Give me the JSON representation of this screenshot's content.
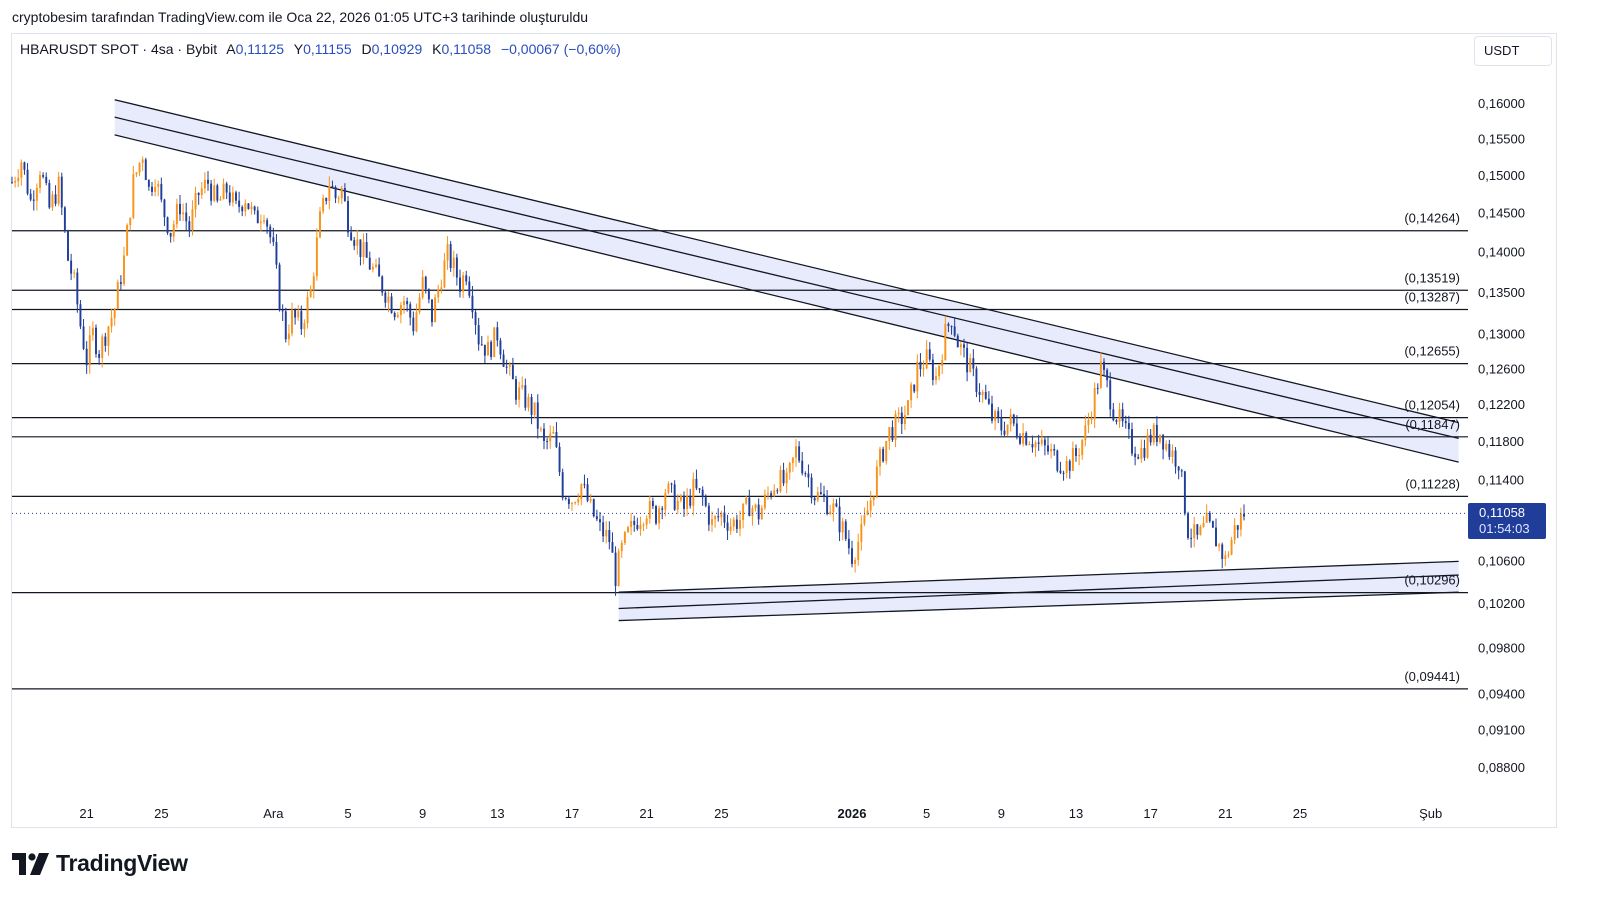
{
  "header": {
    "attribution": "cryptobesim tarafından TradingView.com ile Oca 22, 2026 01:05 UTC+3 tarihinde oluşturuldu"
  },
  "legend": {
    "symbol": "HBARUSDT SPOT · 4sa · Bybit",
    "open_label": "A",
    "open": "0,11125",
    "high_label": "Y",
    "high": "0,11155",
    "low_label": "D",
    "low": "0,10929",
    "close_label": "K",
    "close": "0,11058",
    "change": "−0,00067 (−0,60%)"
  },
  "currency": "USDT",
  "price_tag": {
    "price": "0,11058",
    "countdown": "01:54:03"
  },
  "brand": {
    "name": "TradingView"
  },
  "colors": {
    "up": "#f7931a",
    "down": "#1f3d99",
    "channel_fill": "#e3e8fb",
    "line": "#131722",
    "price_tag": "#1f3d99",
    "current_price_line": "#1f3d99"
  },
  "chart_data": {
    "type": "candlestick",
    "symbol": "HBARUSDT",
    "timeframe": "4sa",
    "y_axis": {
      "scale": "log",
      "range": [
        0.0865,
        0.1625
      ],
      "ticks": [
        0.16,
        0.155,
        0.15,
        0.145,
        0.14,
        0.135,
        0.13,
        0.126,
        0.122,
        0.118,
        0.114,
        0.106,
        0.102,
        0.098,
        0.094,
        0.091,
        0.088
      ],
      "tick_labels": [
        "0,16000",
        "0,15500",
        "0,15000",
        "0,14500",
        "0,14000",
        "0,13500",
        "0,13000",
        "0,12600",
        "0,12200",
        "0,11800",
        "0,11400",
        "0,10600",
        "0,10200",
        "0,09800",
        "0,09400",
        "0,09100",
        "0,08800"
      ]
    },
    "x_axis": {
      "start": "2025-11-17",
      "end": "2026-02-03",
      "ticks": [
        {
          "date": "2025-11-21",
          "label": "21"
        },
        {
          "date": "2025-11-25",
          "label": "25"
        },
        {
          "date": "2025-12-01",
          "label": "Ara"
        },
        {
          "date": "2025-12-05",
          "label": "5"
        },
        {
          "date": "2025-12-09",
          "label": "9"
        },
        {
          "date": "2025-12-13",
          "label": "13"
        },
        {
          "date": "2025-12-17",
          "label": "17"
        },
        {
          "date": "2025-12-21",
          "label": "21"
        },
        {
          "date": "2025-12-25",
          "label": "25"
        },
        {
          "date": "2026-01-01",
          "label": "2026",
          "bold": true
        },
        {
          "date": "2026-01-05",
          "label": "5"
        },
        {
          "date": "2026-01-09",
          "label": "9"
        },
        {
          "date": "2026-01-13",
          "label": "13"
        },
        {
          "date": "2026-01-17",
          "label": "17"
        },
        {
          "date": "2026-01-21",
          "label": "21"
        },
        {
          "date": "2026-01-25",
          "label": "25"
        },
        {
          "date": "2026-02-01",
          "label": "Şub"
        }
      ]
    },
    "price_path": [
      [
        "2025-11-17T00:00",
        0.149
      ],
      [
        "2025-11-17T12:00",
        0.152
      ],
      [
        "2025-11-18T00:00",
        0.1465
      ],
      [
        "2025-11-18T12:00",
        0.151
      ],
      [
        "2025-11-19T00:00",
        0.1455
      ],
      [
        "2025-11-19T12:00",
        0.1485
      ],
      [
        "2025-11-20T00:00",
        0.139
      ],
      [
        "2025-11-20T08:00",
        0.136
      ],
      [
        "2025-11-20T16:00",
        0.131
      ],
      [
        "2025-11-21T00:00",
        0.127
      ],
      [
        "2025-11-21T08:00",
        0.13
      ],
      [
        "2025-11-21T16:00",
        0.128
      ],
      [
        "2025-11-22T00:00",
        0.13
      ],
      [
        "2025-11-22T12:00",
        0.133
      ],
      [
        "2025-11-23T00:00",
        0.139
      ],
      [
        "2025-11-23T12:00",
        0.149
      ],
      [
        "2025-11-24T00:00",
        0.153
      ],
      [
        "2025-11-24T08:00",
        0.148
      ],
      [
        "2025-11-24T16:00",
        0.15
      ],
      [
        "2025-11-25T00:00",
        0.146
      ],
      [
        "2025-11-25T12:00",
        0.1425
      ],
      [
        "2025-11-26T00:00",
        0.146
      ],
      [
        "2025-11-26T12:00",
        0.143
      ],
      [
        "2025-11-27T00:00",
        0.1475
      ],
      [
        "2025-11-27T12:00",
        0.149
      ],
      [
        "2025-11-28T00:00",
        0.146
      ],
      [
        "2025-11-28T12:00",
        0.148
      ],
      [
        "2025-11-29T00:00",
        0.1455
      ],
      [
        "2025-11-29T12:00",
        0.147
      ],
      [
        "2025-11-30T00:00",
        0.144
      ],
      [
        "2025-11-30T12:00",
        0.1455
      ],
      [
        "2025-12-01T00:00",
        0.14
      ],
      [
        "2025-12-01T08:00",
        0.134
      ],
      [
        "2025-12-01T16:00",
        0.13
      ],
      [
        "2025-12-02T00:00",
        0.132
      ],
      [
        "2025-12-02T12:00",
        0.131
      ],
      [
        "2025-12-03T00:00",
        0.135
      ],
      [
        "2025-12-03T12:00",
        0.144
      ],
      [
        "2025-12-04T00:00",
        0.149
      ],
      [
        "2025-12-04T08:00",
        0.147
      ],
      [
        "2025-12-04T16:00",
        0.148
      ],
      [
        "2025-12-05T00:00",
        0.144
      ],
      [
        "2025-12-05T12:00",
        0.141
      ],
      [
        "2025-12-06T00:00",
        0.139
      ],
      [
        "2025-12-06T12:00",
        0.137
      ],
      [
        "2025-12-07T00:00",
        0.135
      ],
      [
        "2025-12-07T12:00",
        0.133
      ],
      [
        "2025-12-08T00:00",
        0.134
      ],
      [
        "2025-12-08T12:00",
        0.131
      ],
      [
        "2025-12-09T00:00",
        0.136
      ],
      [
        "2025-12-09T12:00",
        0.132
      ],
      [
        "2025-12-10T00:00",
        0.137
      ],
      [
        "2025-12-10T08:00",
        0.1395
      ],
      [
        "2025-12-10T16:00",
        0.138
      ],
      [
        "2025-12-11T00:00",
        0.136
      ],
      [
        "2025-12-11T08:00",
        0.1375
      ],
      [
        "2025-12-11T16:00",
        0.134
      ],
      [
        "2025-12-12T00:00",
        0.1295
      ],
      [
        "2025-12-12T12:00",
        0.128
      ],
      [
        "2025-12-13T00:00",
        0.13
      ],
      [
        "2025-12-13T12:00",
        0.126
      ],
      [
        "2025-12-14T00:00",
        0.1235
      ],
      [
        "2025-12-14T12:00",
        0.1225
      ],
      [
        "2025-12-15T00:00",
        0.121
      ],
      [
        "2025-12-15T12:00",
        0.1175
      ],
      [
        "2025-12-16T00:00",
        0.1185
      ],
      [
        "2025-12-16T12:00",
        0.113
      ],
      [
        "2025-12-17T00:00",
        0.112
      ],
      [
        "2025-12-17T12:00",
        0.1135
      ],
      [
        "2025-12-18T00:00",
        0.111
      ],
      [
        "2025-12-18T12:00",
        0.109
      ],
      [
        "2025-12-19T00:00",
        0.108
      ],
      [
        "2025-12-19T08:00",
        0.1045
      ],
      [
        "2025-12-19T16:00",
        0.107
      ],
      [
        "2025-12-20T00:00",
        0.1085
      ],
      [
        "2025-12-20T12:00",
        0.11
      ],
      [
        "2025-12-21T00:00",
        0.111
      ],
      [
        "2025-12-21T12:00",
        0.1105
      ],
      [
        "2025-12-22T00:00",
        0.113
      ],
      [
        "2025-12-22T12:00",
        0.112
      ],
      [
        "2025-12-23T00:00",
        0.111
      ],
      [
        "2025-12-23T12:00",
        0.113
      ],
      [
        "2025-12-24T00:00",
        0.112
      ],
      [
        "2025-12-24T12:00",
        0.1095
      ],
      [
        "2025-12-25T00:00",
        0.1105
      ],
      [
        "2025-12-25T12:00",
        0.1095
      ],
      [
        "2025-12-26T00:00",
        0.11
      ],
      [
        "2025-12-26T12:00",
        0.1115
      ],
      [
        "2025-12-27T00:00",
        0.1105
      ],
      [
        "2025-12-27T12:00",
        0.1125
      ],
      [
        "2025-12-28T00:00",
        0.114
      ],
      [
        "2025-12-28T12:00",
        0.1135
      ],
      [
        "2025-12-29T00:00",
        0.117
      ],
      [
        "2025-12-29T12:00",
        0.115
      ],
      [
        "2025-12-30T00:00",
        0.1125
      ],
      [
        "2025-12-30T12:00",
        0.112
      ],
      [
        "2025-12-31T00:00",
        0.111
      ],
      [
        "2025-12-31T12:00",
        0.109
      ],
      [
        "2026-01-01T00:00",
        0.1065
      ],
      [
        "2026-01-01T12:00",
        0.1085
      ],
      [
        "2026-01-02T00:00",
        0.112
      ],
      [
        "2026-01-02T12:00",
        0.116
      ],
      [
        "2026-01-03T00:00",
        0.119
      ],
      [
        "2026-01-03T12:00",
        0.12
      ],
      [
        "2026-01-04T00:00",
        0.1215
      ],
      [
        "2026-01-04T12:00",
        0.126
      ],
      [
        "2026-01-05T00:00",
        0.127
      ],
      [
        "2026-01-05T12:00",
        0.125
      ],
      [
        "2026-01-06T00:00",
        0.13
      ],
      [
        "2026-01-06T08:00",
        0.132
      ],
      [
        "2026-01-06T16:00",
        0.129
      ],
      [
        "2026-01-07T00:00",
        0.1275
      ],
      [
        "2026-01-07T12:00",
        0.125
      ],
      [
        "2026-01-08T00:00",
        0.123
      ],
      [
        "2026-01-08T12:00",
        0.1205
      ],
      [
        "2026-01-09T00:00",
        0.1195
      ],
      [
        "2026-01-09T12:00",
        0.12
      ],
      [
        "2026-01-10T00:00",
        0.119
      ],
      [
        "2026-01-10T12:00",
        0.1185
      ],
      [
        "2026-01-11T00:00",
        0.1175
      ],
      [
        "2026-01-11T12:00",
        0.117
      ],
      [
        "2026-01-12T00:00",
        0.116
      ],
      [
        "2026-01-12T12:00",
        0.1155
      ],
      [
        "2026-01-13T00:00",
        0.1165
      ],
      [
        "2026-01-13T12:00",
        0.119
      ],
      [
        "2026-01-14T00:00",
        0.123
      ],
      [
        "2026-01-14T08:00",
        0.126
      ],
      [
        "2026-01-14T16:00",
        0.124
      ],
      [
        "2026-01-15T00:00",
        0.1215
      ],
      [
        "2026-01-15T12:00",
        0.1195
      ],
      [
        "2026-01-16T00:00",
        0.1175
      ],
      [
        "2026-01-16T12:00",
        0.117
      ],
      [
        "2026-01-17T00:00",
        0.1185
      ],
      [
        "2026-01-17T12:00",
        0.119
      ],
      [
        "2026-01-18T00:00",
        0.117
      ],
      [
        "2026-01-18T12:00",
        0.116
      ],
      [
        "2026-01-19T00:00",
        0.109
      ],
      [
        "2026-01-19T12:00",
        0.108
      ],
      [
        "2026-01-20T00:00",
        0.1095
      ],
      [
        "2026-01-20T12:00",
        0.108
      ],
      [
        "2026-01-21T00:00",
        0.106
      ],
      [
        "2026-01-21T12:00",
        0.109
      ],
      [
        "2026-01-22T00:00",
        0.1106
      ]
    ],
    "horizontal_levels": [
      {
        "value": 0.14264,
        "label": "(0,14264)"
      },
      {
        "value": 0.13519,
        "label": "(0,13519)"
      },
      {
        "value": 0.13287,
        "label": "(0,13287)"
      },
      {
        "value": 0.12655,
        "label": "(0,12655)"
      },
      {
        "value": 0.12054,
        "label": "(0,12054)"
      },
      {
        "value": 0.11847,
        "label": "(0,11847)"
      },
      {
        "value": 0.11228,
        "label": "(0,11228)"
      },
      {
        "value": 0.10296,
        "label": "(0,10296)"
      },
      {
        "value": 0.09441,
        "label": "(0,09441)"
      }
    ],
    "channels": [
      {
        "name": "descending",
        "lines": [
          [
            [
              "2025-11-22T12:00",
              0.1605
            ],
            [
              "2026-02-02T12:00",
              0.12
            ]
          ],
          [
            [
              "2025-11-22T12:00",
              0.158
            ],
            [
              "2026-02-02T12:00",
              0.1183
            ]
          ],
          [
            [
              "2025-11-22T12:00",
              0.1555
            ],
            [
              "2026-02-02T12:00",
              0.1158
            ]
          ]
        ]
      },
      {
        "name": "ascending",
        "lines": [
          [
            [
              "2025-12-19T12:00",
              0.103
            ],
            [
              "2026-02-02T12:00",
              0.1059
            ]
          ],
          [
            [
              "2025-12-19T12:00",
              0.1015
            ],
            [
              "2026-02-02T12:00",
              0.1046
            ]
          ],
          [
            [
              "2025-12-19T12:00",
              0.1004
            ],
            [
              "2026-02-02T12:00",
              0.103
            ]
          ]
        ]
      }
    ],
    "current_price": 0.11058
  }
}
